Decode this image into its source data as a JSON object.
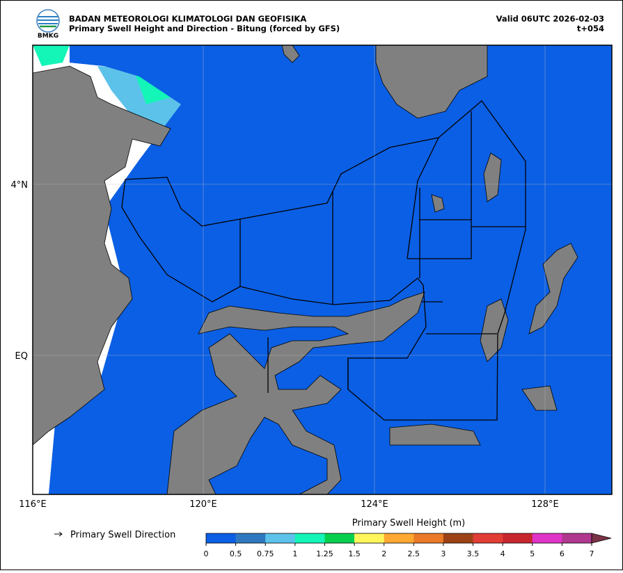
{
  "header": {
    "logo_text": "BMKG",
    "title": "BADAN METEOROLOGI KLIMATOLOGI DAN GEOFISIKA",
    "subtitle": "Primary Swell Height and Direction - Bitung (forced by GFS)",
    "valid": "Valid 06UTC 2026-02-03",
    "lead": "t+054"
  },
  "map": {
    "xticks": [
      "116°E",
      "120°E",
      "124°E",
      "128°E"
    ],
    "yticks": [
      "4°N",
      "EQ"
    ]
  },
  "legend": {
    "direction_label": "Primary Swell Direction"
  },
  "colorbar": {
    "title": "Primary Swell Height (m)",
    "ticks": [
      0,
      0.5,
      0.75,
      1,
      1.25,
      1.5,
      2,
      2.5,
      3,
      3.5,
      4,
      5,
      6,
      7
    ],
    "colors": [
      "#0b5fe4",
      "#2f78c0",
      "#5cc2ea",
      "#14f5b8",
      "#06cf50",
      "#fff65a",
      "#ffa832",
      "#ea7a28",
      "#9c4216",
      "#e23c36",
      "#c8262e",
      "#df34c6",
      "#b0388f"
    ],
    "extend_color": "#7b3346"
  }
}
